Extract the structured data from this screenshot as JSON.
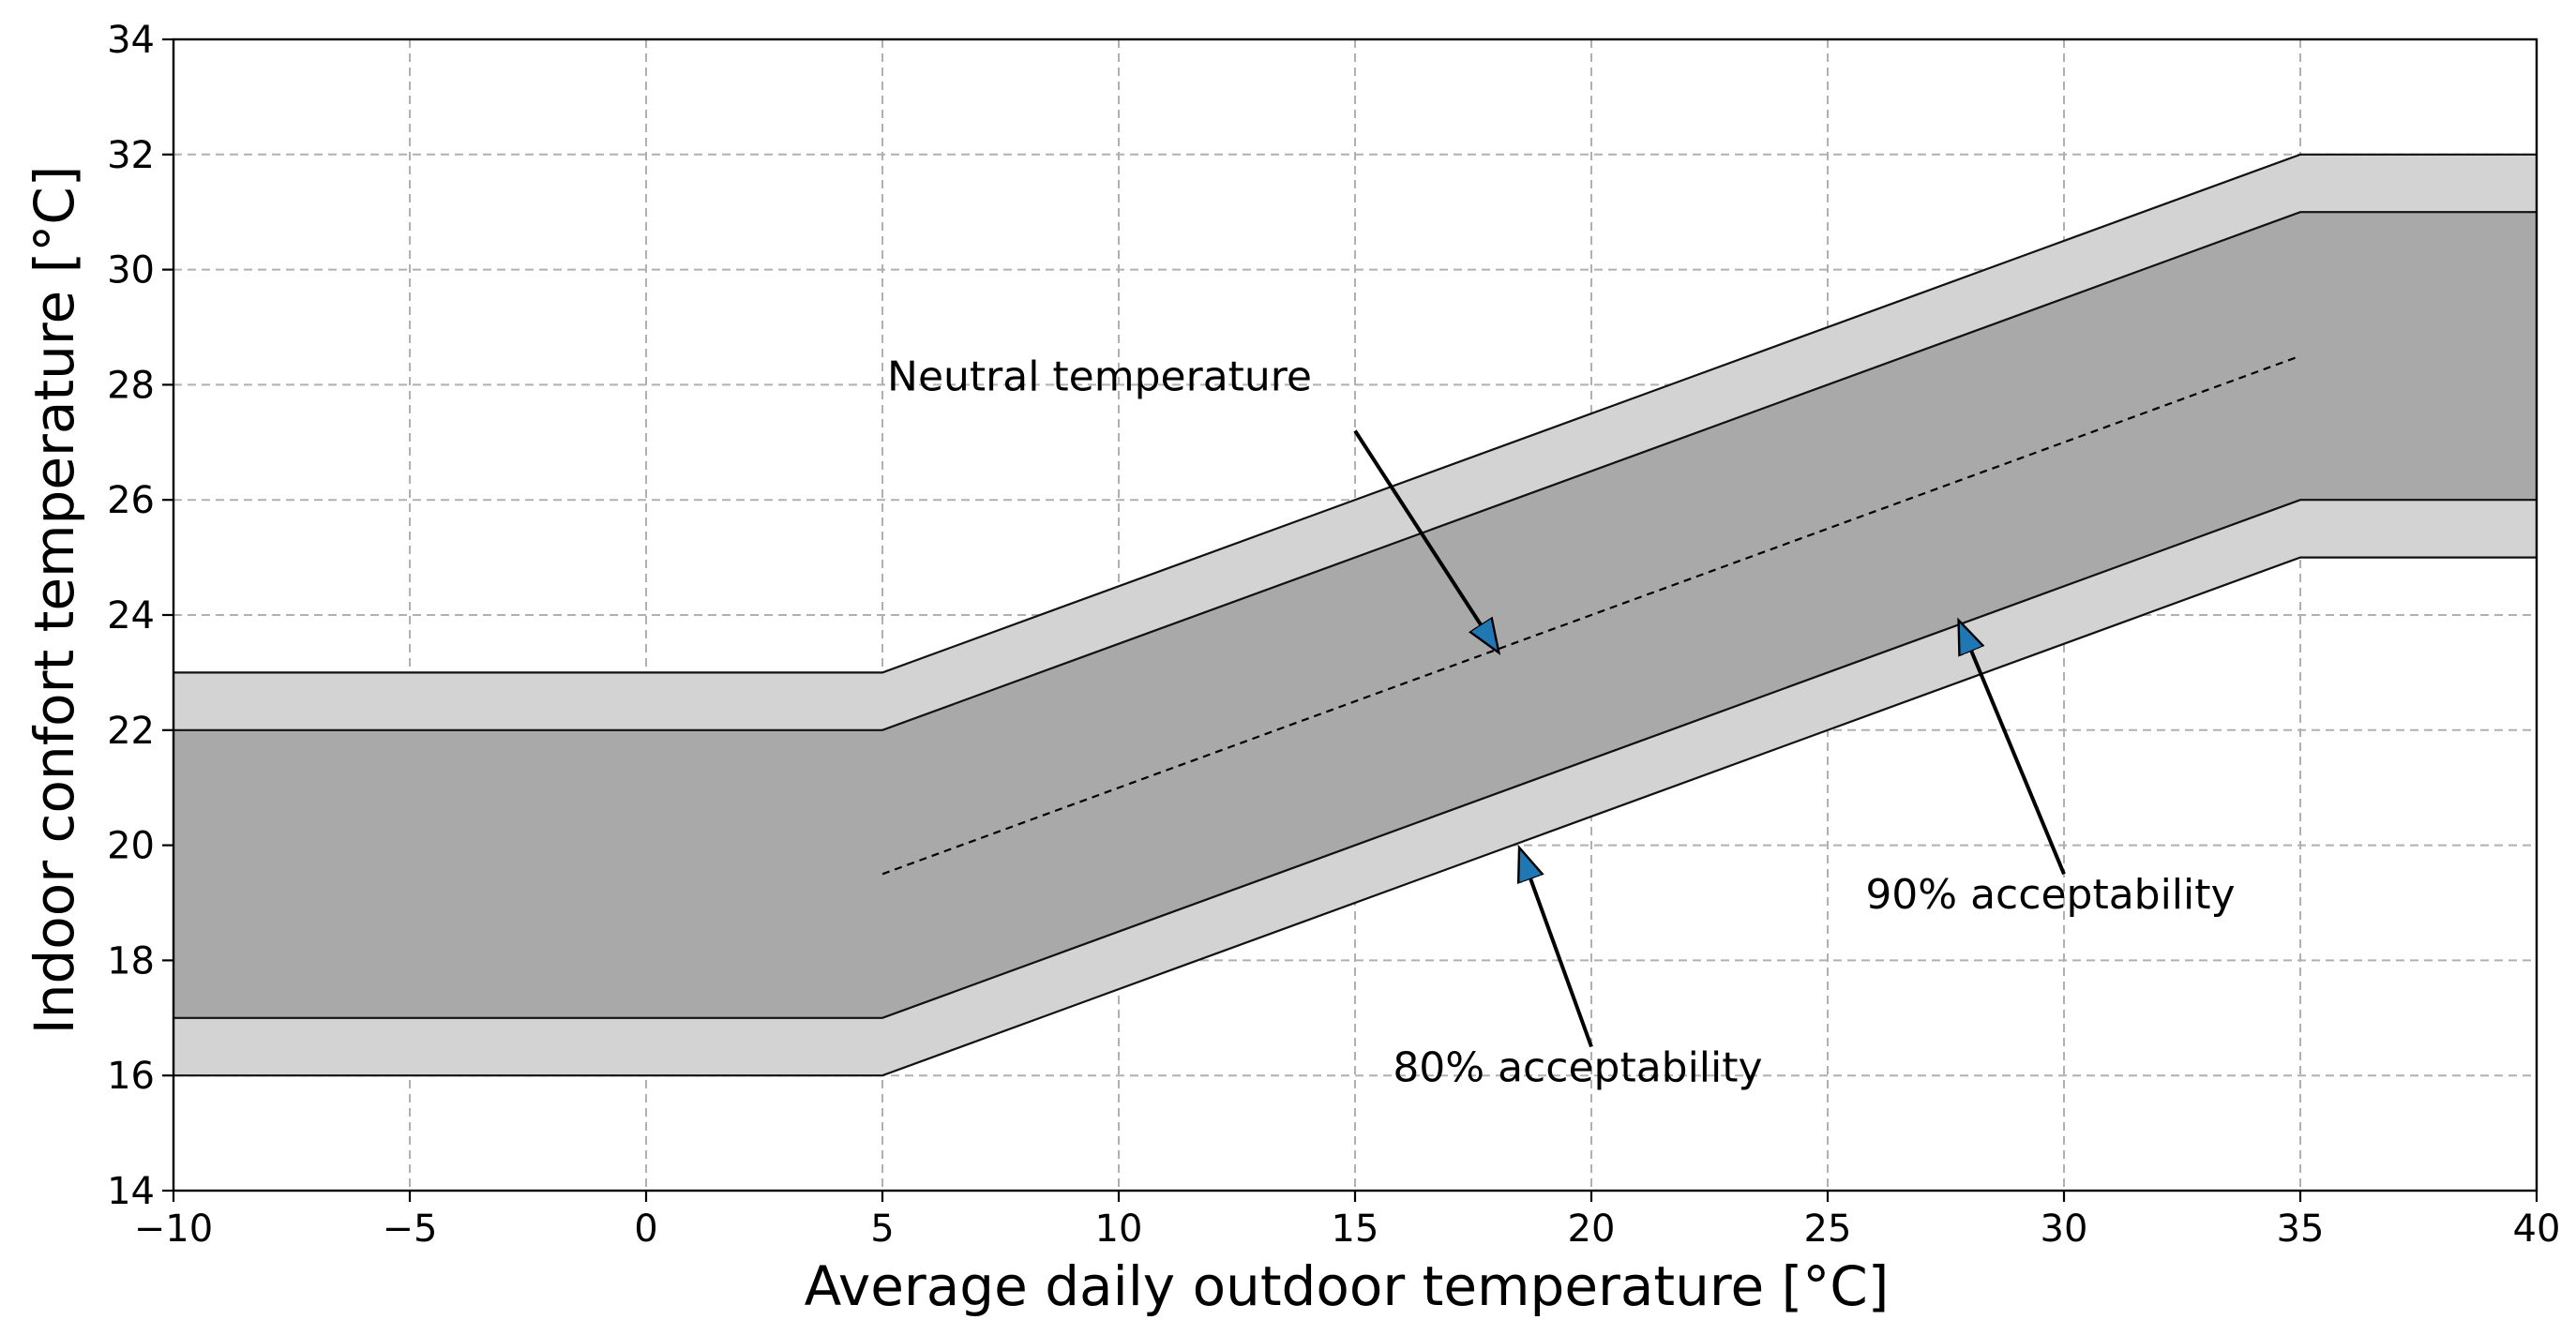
{
  "chart_data": {
    "type": "area",
    "title": "",
    "xlabel": "Average daily outdoor temperature [°C]",
    "ylabel": "Indoor confort temperature [°C]",
    "xlim": [
      -10,
      40
    ],
    "ylim": [
      14,
      34
    ],
    "xticks": [
      -10,
      -5,
      0,
      5,
      10,
      15,
      20,
      25,
      30,
      35,
      40
    ],
    "xtick_labels": [
      "−10",
      "−5",
      "0",
      "5",
      "10",
      "15",
      "20",
      "25",
      "30",
      "35",
      "40"
    ],
    "yticks": [
      14,
      16,
      18,
      20,
      22,
      24,
      26,
      28,
      30,
      32,
      34
    ],
    "ytick_labels": [
      "14",
      "16",
      "18",
      "20",
      "22",
      "24",
      "26",
      "28",
      "30",
      "32",
      "34"
    ],
    "grid": true,
    "x": [
      -10,
      5,
      35,
      40
    ],
    "bands": [
      {
        "name": "80% acceptability",
        "color": "#d3d3d3",
        "upper": [
          23,
          23,
          32,
          32
        ],
        "lower": [
          16,
          16,
          25,
          25
        ]
      },
      {
        "name": "90% acceptability",
        "color": "#a9a9a9",
        "upper": [
          22,
          22,
          31,
          31
        ],
        "lower": [
          17,
          17,
          26,
          26
        ]
      }
    ],
    "neutral_line": {
      "name": "Neutral temperature",
      "x": [
        5,
        35
      ],
      "y": [
        19.5,
        28.5
      ],
      "style": "dashed"
    },
    "annotations": [
      {
        "name": "neutral",
        "text": "Neutral temperature",
        "text_pos": [
          5.1,
          27.9
        ],
        "tail": [
          15,
          27.2
        ],
        "tip": [
          18,
          23.4
        ]
      },
      {
        "name": "90",
        "text": "90% acceptability",
        "text_pos": [
          25.8,
          18.9
        ],
        "tail": [
          30,
          19.5
        ],
        "tip": [
          27.8,
          23.85
        ]
      },
      {
        "name": "80",
        "text": "80% acceptability",
        "text_pos": [
          15.8,
          15.9
        ],
        "tail": [
          20,
          16.5
        ],
        "tip": [
          18.5,
          19.9
        ]
      }
    ]
  }
}
